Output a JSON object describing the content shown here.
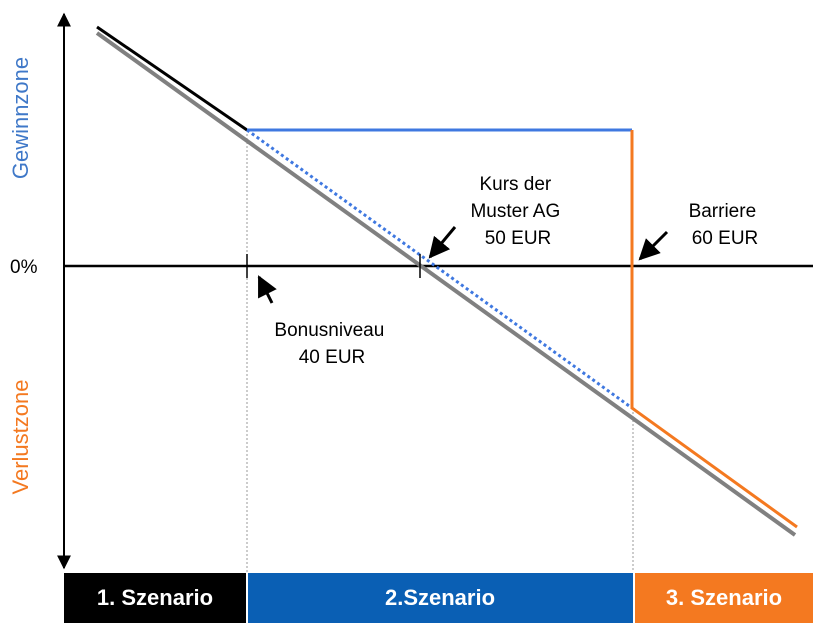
{
  "axis": {
    "upper_zone": "Gewinnzone",
    "lower_zone": "Verlustzone",
    "zero": "0%"
  },
  "annotations": {
    "price": [
      "Kurs der",
      "Muster AG",
      "50 EUR"
    ],
    "barrier": [
      "Barriere",
      "60 EUR"
    ],
    "bonus": [
      "Bonusniveau",
      "40 EUR"
    ]
  },
  "scenarios": [
    "1. Szenario",
    "2.Szenario",
    "3. Szenario"
  ]
}
